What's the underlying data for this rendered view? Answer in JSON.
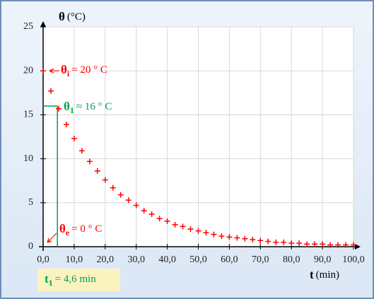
{
  "chart_data": {
    "type": "scatter",
    "y_label": {
      "symbol": "θ",
      "text": "(°C)"
    },
    "x_label": {
      "symbol": "t",
      "text": "(min)"
    },
    "x": [
      0,
      2.5,
      5,
      7.5,
      10,
      12.5,
      15,
      17.5,
      20,
      22.5,
      25,
      27.5,
      30,
      32.5,
      35,
      37.5,
      40,
      42.5,
      45,
      47.5,
      50,
      52.5,
      55,
      57.5,
      60,
      62.5,
      65,
      67.5,
      70,
      72.5,
      75,
      77.5,
      80,
      82.5,
      85,
      87.5,
      90,
      92.5,
      95,
      97.5,
      100
    ],
    "values": [
      20,
      17.7,
      15.7,
      13.9,
      12.3,
      10.9,
      9.7,
      8.6,
      7.6,
      6.7,
      5.9,
      5.3,
      4.7,
      4.1,
      3.7,
      3.2,
      2.9,
      2.5,
      2.3,
      2.0,
      1.8,
      1.6,
      1.4,
      1.2,
      1.1,
      1.0,
      0.9,
      0.8,
      0.7,
      0.6,
      0.5,
      0.5,
      0.4,
      0.4,
      0.3,
      0.3,
      0.3,
      0.2,
      0.2,
      0.2,
      0.2
    ],
    "color": "#ff0000",
    "xlim": [
      0,
      100
    ],
    "ylim": [
      0,
      25
    ],
    "xticks": [
      {
        "value": 0,
        "label": "0,0"
      },
      {
        "value": 10,
        "label": "10,0"
      },
      {
        "value": 20,
        "label": "20,0"
      },
      {
        "value": 30,
        "label": "30,0"
      },
      {
        "value": 40,
        "label": "40,0"
      },
      {
        "value": 50,
        "label": "50,0"
      },
      {
        "value": 60,
        "label": "60,0"
      },
      {
        "value": 70,
        "label": "70,0"
      },
      {
        "value": 80,
        "label": "80,0"
      },
      {
        "value": 90,
        "label": "90,0"
      },
      {
        "value": 100,
        "label": "100,0"
      }
    ],
    "yticks": [
      0,
      5,
      10,
      15,
      20,
      25
    ],
    "grid": true,
    "annotations": {
      "initial": {
        "symbol": "θ",
        "subscript": "i",
        "text": "= 20 ° C"
      },
      "final": {
        "symbol": "θ",
        "subscript": "e",
        "text": "= 0 ° C"
      },
      "point": {
        "symbol": "θ",
        "subscript": "1",
        "text": "≈ 16 ° C",
        "x": 4.6,
        "y": 16,
        "color": "#00a050"
      },
      "time": {
        "symbol": "t",
        "subscript": "1",
        "text": "= 4,6 min"
      }
    }
  }
}
